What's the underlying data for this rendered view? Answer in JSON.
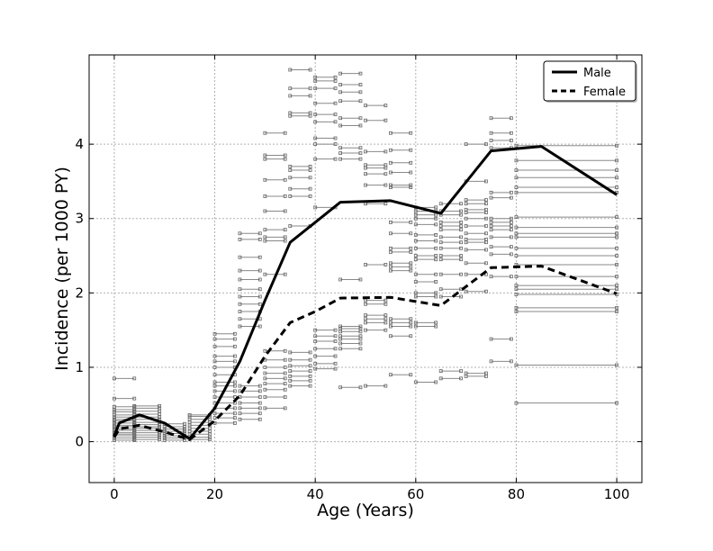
{
  "chart_data": {
    "type": "line",
    "xlabel": "Age (Years)",
    "ylabel": "Incidence (per 1000 PY)",
    "xlim": [
      -5,
      105
    ],
    "ylim": [
      -0.55,
      5.2
    ],
    "xticks": [
      0,
      20,
      40,
      60,
      80,
      100
    ],
    "yticks": [
      0,
      1,
      2,
      3,
      4
    ],
    "grid": true,
    "legend_position": "top-right",
    "series": [
      {
        "name": "Male",
        "style": "solid",
        "x": [
          0,
          1,
          5,
          10,
          15,
          20,
          25,
          30,
          35,
          40,
          45,
          55,
          65,
          75,
          85,
          100
        ],
        "y": [
          0.08,
          0.25,
          0.36,
          0.25,
          0.04,
          0.45,
          1.08,
          1.9,
          2.68,
          2.95,
          3.22,
          3.24,
          3.07,
          3.91,
          3.97,
          3.32
        ]
      },
      {
        "name": "Female",
        "style": "dashed",
        "x": [
          0,
          1,
          5,
          10,
          15,
          20,
          25,
          30,
          35,
          40,
          45,
          55,
          65,
          75,
          85,
          100
        ],
        "y": [
          0.06,
          0.17,
          0.22,
          0.13,
          0.03,
          0.28,
          0.62,
          1.15,
          1.6,
          1.75,
          1.93,
          1.94,
          1.83,
          2.34,
          2.36,
          1.99
        ]
      }
    ],
    "interval_segments": [
      {
        "x0": 0,
        "x1": 4,
        "y": [
          0.02,
          0.05,
          0.08,
          0.1,
          0.12,
          0.15,
          0.17,
          0.2,
          0.22,
          0.25,
          0.28,
          0.3,
          0.33,
          0.36,
          0.4,
          0.43,
          0.47,
          0.58,
          0.85
        ]
      },
      {
        "x0": 4,
        "x1": 9,
        "y": [
          0.03,
          0.06,
          0.09,
          0.12,
          0.15,
          0.18,
          0.2,
          0.23,
          0.26,
          0.3,
          0.33,
          0.37,
          0.41,
          0.45,
          0.48
        ]
      },
      {
        "x0": 10,
        "x1": 14,
        "y": [
          0.02,
          0.05,
          0.08,
          0.11,
          0.14,
          0.17,
          0.2,
          0.24
        ]
      },
      {
        "x0": 15,
        "x1": 19,
        "y": [
          0.03,
          0.06,
          0.1,
          0.14,
          0.18,
          0.22,
          0.26,
          0.3,
          0.34,
          0.36
        ]
      },
      {
        "x0": 20,
        "x1": 24,
        "y": [
          0.25,
          0.32,
          0.38,
          0.45,
          0.52,
          0.6,
          0.68,
          0.75,
          0.8,
          0.9,
          1.0,
          1.08,
          1.15,
          1.28,
          1.38,
          1.45
        ]
      },
      {
        "x0": 25,
        "x1": 29,
        "y": [
          0.3,
          0.38,
          0.45,
          0.52,
          0.6,
          0.68,
          0.75,
          1.55,
          1.65,
          1.75,
          1.85,
          1.95,
          2.05,
          2.18,
          2.3,
          2.48,
          2.72,
          2.8
        ]
      },
      {
        "x0": 30,
        "x1": 34,
        "y": [
          0.45,
          0.6,
          0.7,
          0.78,
          0.85,
          0.92,
          1.0,
          1.1,
          1.22,
          2.25,
          2.7,
          2.75,
          2.85,
          3.1,
          3.3,
          3.52,
          3.8,
          3.85,
          4.15
        ]
      },
      {
        "x0": 35,
        "x1": 39,
        "y": [
          0.75,
          0.82,
          0.88,
          0.95,
          1.02,
          1.1,
          1.2,
          2.9,
          3.3,
          3.4,
          3.55,
          3.65,
          3.7,
          4.38,
          4.42,
          4.65,
          4.75,
          5.0
        ]
      },
      {
        "x0": 40,
        "x1": 44,
        "y": [
          0.98,
          1.05,
          1.15,
          1.25,
          1.35,
          1.42,
          1.5,
          3.15,
          3.8,
          4.0,
          4.08,
          4.3,
          4.4,
          4.55,
          4.75,
          4.85,
          4.9
        ]
      },
      {
        "x0": 45,
        "x1": 49,
        "y": [
          0.73,
          1.25,
          1.32,
          1.38,
          1.42,
          1.48,
          1.52,
          1.55,
          2.18,
          3.8,
          3.88,
          3.95,
          4.25,
          4.35,
          4.58,
          4.7,
          4.8,
          4.95
        ]
      },
      {
        "x0": 50,
        "x1": 54,
        "y": [
          0.75,
          1.5,
          1.6,
          1.65,
          1.7,
          1.85,
          1.9,
          2.38,
          3.2,
          3.45,
          3.6,
          3.68,
          3.72,
          3.9,
          4.32,
          4.52
        ]
      },
      {
        "x0": 55,
        "x1": 59,
        "y": [
          0.9,
          1.42,
          1.55,
          1.6,
          1.65,
          2.3,
          2.35,
          2.4,
          2.55,
          2.6,
          2.8,
          2.95,
          3.42,
          3.45,
          3.62,
          3.75,
          3.92,
          4.15
        ]
      },
      {
        "x0": 60,
        "x1": 64,
        "y": [
          0.8,
          1.55,
          1.6,
          1.95,
          2.0,
          2.15,
          2.25,
          2.45,
          2.5,
          2.6,
          2.7,
          2.78,
          2.92,
          3.0,
          3.05,
          3.1,
          3.15
        ]
      },
      {
        "x0": 65,
        "x1": 69,
        "y": [
          0.85,
          0.95,
          1.95,
          2.05,
          2.25,
          2.45,
          2.5,
          2.6,
          2.68,
          2.75,
          2.85,
          2.9,
          2.95,
          3.05,
          3.1,
          3.2
        ]
      },
      {
        "x0": 70,
        "x1": 74,
        "y": [
          0.88,
          0.92,
          2.02,
          2.25,
          2.4,
          2.58,
          2.68,
          2.72,
          2.8,
          2.9,
          3.0,
          3.08,
          3.12,
          3.2,
          3.25,
          3.5,
          4.0
        ]
      },
      {
        "x0": 75,
        "x1": 79,
        "y": [
          1.08,
          1.38,
          2.22,
          2.52,
          2.62,
          2.75,
          2.85,
          2.9,
          2.95,
          3.0,
          3.28,
          3.35,
          3.95,
          4.05,
          4.15,
          4.35
        ]
      },
      {
        "x0": 80,
        "x1": 100,
        "y": [
          0.52,
          1.03,
          1.75,
          1.8,
          1.98,
          2.05,
          2.1,
          2.22,
          2.38,
          2.5,
          2.6,
          2.75,
          2.8,
          2.88,
          3.02,
          3.35,
          3.42,
          3.55,
          3.65,
          3.78,
          3.98
        ]
      }
    ]
  },
  "colors": {
    "line": "#000000",
    "interval": "#888888",
    "grid": "#b0b0b0"
  }
}
